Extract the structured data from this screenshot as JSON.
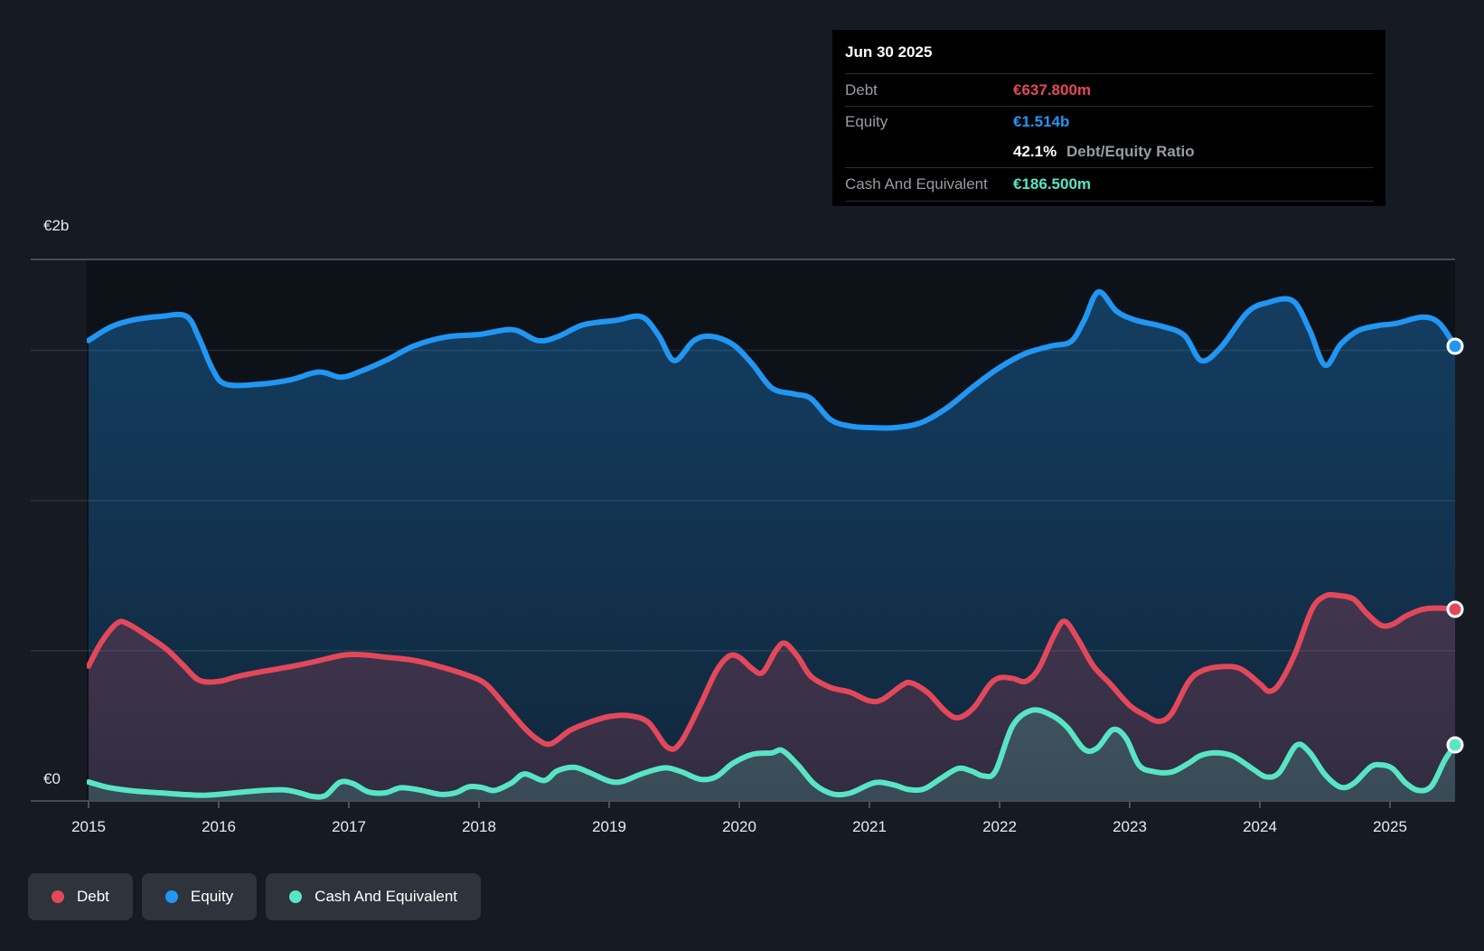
{
  "tooltip": {
    "date": "Jun 30 2025",
    "debt_label": "Debt",
    "debt_value": "€637.800m",
    "equity_label": "Equity",
    "equity_value": "€1.514b",
    "ratio_value": "42.1%",
    "ratio_label": "Debt/Equity Ratio",
    "cash_label": "Cash And Equivalent",
    "cash_value": "€186.500m"
  },
  "legend": {
    "items": [
      {
        "label": "Debt",
        "color": "#e3485a"
      },
      {
        "label": "Equity",
        "color": "#2196f3"
      },
      {
        "label": "Cash And Equivalent",
        "color": "#58e5c5"
      }
    ]
  },
  "colors": {
    "background": "#161b23",
    "plot_bg": "#0d1219",
    "grid": "rgba(255,255,255,0.10)",
    "frame": "#454b54",
    "tick": "#4a5058",
    "axis_label": "#e8eaec",
    "tooltip_bg": "#000000",
    "tooltip_label": "#979da4",
    "debt": "#e3485a",
    "equity": "#2196f3",
    "cash": "#58e5c5",
    "marker_ring": "#ffffff"
  },
  "chart_data": {
    "type": "area",
    "units": "€ billions",
    "ylim": [
      0,
      2
    ],
    "y_axis": {
      "top_label": "€2b",
      "zero_label": "€0"
    },
    "x_ticks": [
      2015,
      2016,
      2017,
      2018,
      2019,
      2020,
      2021,
      2022,
      2023,
      2024,
      2025
    ],
    "legend_position": "bottom-left",
    "grid": true,
    "series": [
      {
        "name": "Debt",
        "color": "#e3485a",
        "end_label": "€637.800m",
        "points": [
          [
            2015.0,
            0.449
          ],
          [
            2015.1,
            0.53
          ],
          [
            2015.22,
            0.592
          ],
          [
            2015.3,
            0.59
          ],
          [
            2015.45,
            0.55
          ],
          [
            2015.6,
            0.505
          ],
          [
            2015.72,
            0.455
          ],
          [
            2015.85,
            0.402
          ],
          [
            2016.0,
            0.398
          ],
          [
            2016.15,
            0.415
          ],
          [
            2016.35,
            0.432
          ],
          [
            2016.55,
            0.447
          ],
          [
            2016.75,
            0.465
          ],
          [
            2016.95,
            0.485
          ],
          [
            2017.1,
            0.487
          ],
          [
            2017.3,
            0.478
          ],
          [
            2017.5,
            0.468
          ],
          [
            2017.7,
            0.447
          ],
          [
            2017.9,
            0.42
          ],
          [
            2018.05,
            0.39
          ],
          [
            2018.2,
            0.318
          ],
          [
            2018.35,
            0.243
          ],
          [
            2018.45,
            0.205
          ],
          [
            2018.55,
            0.19
          ],
          [
            2018.7,
            0.235
          ],
          [
            2018.85,
            0.262
          ],
          [
            2019.0,
            0.281
          ],
          [
            2019.15,
            0.284
          ],
          [
            2019.3,
            0.262
          ],
          [
            2019.45,
            0.178
          ],
          [
            2019.55,
            0.195
          ],
          [
            2019.7,
            0.32
          ],
          [
            2019.82,
            0.43
          ],
          [
            2019.92,
            0.482
          ],
          [
            2020.0,
            0.478
          ],
          [
            2020.1,
            0.44
          ],
          [
            2020.18,
            0.428
          ],
          [
            2020.28,
            0.5
          ],
          [
            2020.35,
            0.525
          ],
          [
            2020.45,
            0.48
          ],
          [
            2020.55,
            0.415
          ],
          [
            2020.7,
            0.378
          ],
          [
            2020.85,
            0.362
          ],
          [
            2021.0,
            0.333
          ],
          [
            2021.1,
            0.338
          ],
          [
            2021.25,
            0.385
          ],
          [
            2021.32,
            0.393
          ],
          [
            2021.45,
            0.36
          ],
          [
            2021.58,
            0.3
          ],
          [
            2021.68,
            0.277
          ],
          [
            2021.8,
            0.31
          ],
          [
            2021.92,
            0.385
          ],
          [
            2022.0,
            0.41
          ],
          [
            2022.1,
            0.408
          ],
          [
            2022.2,
            0.398
          ],
          [
            2022.3,
            0.44
          ],
          [
            2022.42,
            0.552
          ],
          [
            2022.5,
            0.598
          ],
          [
            2022.6,
            0.54
          ],
          [
            2022.72,
            0.45
          ],
          [
            2022.85,
            0.39
          ],
          [
            2023.0,
            0.318
          ],
          [
            2023.12,
            0.285
          ],
          [
            2023.22,
            0.265
          ],
          [
            2023.32,
            0.29
          ],
          [
            2023.45,
            0.395
          ],
          [
            2023.55,
            0.432
          ],
          [
            2023.7,
            0.447
          ],
          [
            2023.85,
            0.44
          ],
          [
            2024.0,
            0.39
          ],
          [
            2024.07,
            0.365
          ],
          [
            2024.15,
            0.39
          ],
          [
            2024.27,
            0.49
          ],
          [
            2024.4,
            0.638
          ],
          [
            2024.5,
            0.682
          ],
          [
            2024.6,
            0.684
          ],
          [
            2024.72,
            0.672
          ],
          [
            2024.82,
            0.625
          ],
          [
            2024.93,
            0.585
          ],
          [
            2025.02,
            0.588
          ],
          [
            2025.12,
            0.615
          ],
          [
            2025.25,
            0.638
          ],
          [
            2025.35,
            0.642
          ],
          [
            2025.45,
            0.64
          ],
          [
            2025.5,
            0.638
          ]
        ]
      },
      {
        "name": "Equity",
        "color": "#2196f3",
        "end_label": "€1.514b",
        "points": [
          [
            2015.0,
            1.533
          ],
          [
            2015.17,
            1.578
          ],
          [
            2015.35,
            1.602
          ],
          [
            2015.55,
            1.613
          ],
          [
            2015.75,
            1.614
          ],
          [
            2015.85,
            1.54
          ],
          [
            2015.95,
            1.44
          ],
          [
            2016.05,
            1.388
          ],
          [
            2016.3,
            1.387
          ],
          [
            2016.55,
            1.402
          ],
          [
            2016.77,
            1.428
          ],
          [
            2016.94,
            1.411
          ],
          [
            2017.1,
            1.432
          ],
          [
            2017.3,
            1.47
          ],
          [
            2017.5,
            1.515
          ],
          [
            2017.75,
            1.545
          ],
          [
            2018.0,
            1.553
          ],
          [
            2018.26,
            1.569
          ],
          [
            2018.45,
            1.533
          ],
          [
            2018.6,
            1.545
          ],
          [
            2018.8,
            1.585
          ],
          [
            2019.05,
            1.6
          ],
          [
            2019.25,
            1.612
          ],
          [
            2019.38,
            1.55
          ],
          [
            2019.5,
            1.466
          ],
          [
            2019.65,
            1.532
          ],
          [
            2019.78,
            1.547
          ],
          [
            2019.95,
            1.52
          ],
          [
            2020.1,
            1.455
          ],
          [
            2020.25,
            1.375
          ],
          [
            2020.42,
            1.355
          ],
          [
            2020.55,
            1.34
          ],
          [
            2020.7,
            1.27
          ],
          [
            2020.85,
            1.248
          ],
          [
            2021.0,
            1.243
          ],
          [
            2021.2,
            1.243
          ],
          [
            2021.4,
            1.26
          ],
          [
            2021.6,
            1.31
          ],
          [
            2021.8,
            1.38
          ],
          [
            2022.0,
            1.443
          ],
          [
            2022.2,
            1.49
          ],
          [
            2022.4,
            1.515
          ],
          [
            2022.55,
            1.53
          ],
          [
            2022.65,
            1.6
          ],
          [
            2022.76,
            1.695
          ],
          [
            2022.9,
            1.63
          ],
          [
            2023.05,
            1.6
          ],
          [
            2023.25,
            1.58
          ],
          [
            2023.42,
            1.55
          ],
          [
            2023.55,
            1.466
          ],
          [
            2023.7,
            1.51
          ],
          [
            2023.9,
            1.625
          ],
          [
            2024.05,
            1.658
          ],
          [
            2024.25,
            1.666
          ],
          [
            2024.38,
            1.57
          ],
          [
            2024.5,
            1.451
          ],
          [
            2024.62,
            1.52
          ],
          [
            2024.75,
            1.565
          ],
          [
            2024.9,
            1.582
          ],
          [
            2025.05,
            1.59
          ],
          [
            2025.25,
            1.611
          ],
          [
            2025.38,
            1.59
          ],
          [
            2025.5,
            1.514
          ]
        ]
      },
      {
        "name": "Cash And Equivalent",
        "color": "#58e5c5",
        "end_label": "€186.500m",
        "points": [
          [
            2015.0,
            0.063
          ],
          [
            2015.15,
            0.045
          ],
          [
            2015.35,
            0.033
          ],
          [
            2015.55,
            0.027
          ],
          [
            2015.75,
            0.021
          ],
          [
            2015.9,
            0.019
          ],
          [
            2016.1,
            0.026
          ],
          [
            2016.3,
            0.034
          ],
          [
            2016.5,
            0.037
          ],
          [
            2016.62,
            0.027
          ],
          [
            2016.72,
            0.015
          ],
          [
            2016.82,
            0.018
          ],
          [
            2016.93,
            0.062
          ],
          [
            2017.03,
            0.058
          ],
          [
            2017.15,
            0.03
          ],
          [
            2017.28,
            0.027
          ],
          [
            2017.4,
            0.044
          ],
          [
            2017.55,
            0.036
          ],
          [
            2017.7,
            0.022
          ],
          [
            2017.82,
            0.027
          ],
          [
            2017.92,
            0.047
          ],
          [
            2018.02,
            0.045
          ],
          [
            2018.12,
            0.035
          ],
          [
            2018.25,
            0.06
          ],
          [
            2018.35,
            0.09
          ],
          [
            2018.5,
            0.068
          ],
          [
            2018.6,
            0.1
          ],
          [
            2018.73,
            0.112
          ],
          [
            2018.85,
            0.094
          ],
          [
            2019.0,
            0.066
          ],
          [
            2019.1,
            0.065
          ],
          [
            2019.25,
            0.09
          ],
          [
            2019.42,
            0.11
          ],
          [
            2019.55,
            0.098
          ],
          [
            2019.7,
            0.072
          ],
          [
            2019.82,
            0.08
          ],
          [
            2019.95,
            0.125
          ],
          [
            2020.1,
            0.155
          ],
          [
            2020.25,
            0.16
          ],
          [
            2020.33,
            0.168
          ],
          [
            2020.45,
            0.12
          ],
          [
            2020.58,
            0.055
          ],
          [
            2020.72,
            0.023
          ],
          [
            2020.85,
            0.026
          ],
          [
            2021.0,
            0.055
          ],
          [
            2021.08,
            0.062
          ],
          [
            2021.2,
            0.052
          ],
          [
            2021.3,
            0.038
          ],
          [
            2021.42,
            0.04
          ],
          [
            2021.55,
            0.075
          ],
          [
            2021.68,
            0.108
          ],
          [
            2021.78,
            0.1
          ],
          [
            2021.88,
            0.083
          ],
          [
            2021.97,
            0.1
          ],
          [
            2022.1,
            0.25
          ],
          [
            2022.25,
            0.302
          ],
          [
            2022.4,
            0.285
          ],
          [
            2022.52,
            0.245
          ],
          [
            2022.65,
            0.172
          ],
          [
            2022.75,
            0.176
          ],
          [
            2022.87,
            0.237
          ],
          [
            2022.97,
            0.21
          ],
          [
            2023.07,
            0.12
          ],
          [
            2023.18,
            0.098
          ],
          [
            2023.32,
            0.096
          ],
          [
            2023.45,
            0.125
          ],
          [
            2023.55,
            0.152
          ],
          [
            2023.68,
            0.16
          ],
          [
            2023.8,
            0.148
          ],
          [
            2023.95,
            0.105
          ],
          [
            2024.05,
            0.08
          ],
          [
            2024.15,
            0.095
          ],
          [
            2024.28,
            0.185
          ],
          [
            2024.38,
            0.163
          ],
          [
            2024.5,
            0.088
          ],
          [
            2024.62,
            0.046
          ],
          [
            2024.72,
            0.058
          ],
          [
            2024.85,
            0.113
          ],
          [
            2024.93,
            0.12
          ],
          [
            2025.02,
            0.108
          ],
          [
            2025.12,
            0.06
          ],
          [
            2025.22,
            0.035
          ],
          [
            2025.32,
            0.05
          ],
          [
            2025.42,
            0.135
          ],
          [
            2025.5,
            0.1865
          ]
        ]
      }
    ]
  }
}
